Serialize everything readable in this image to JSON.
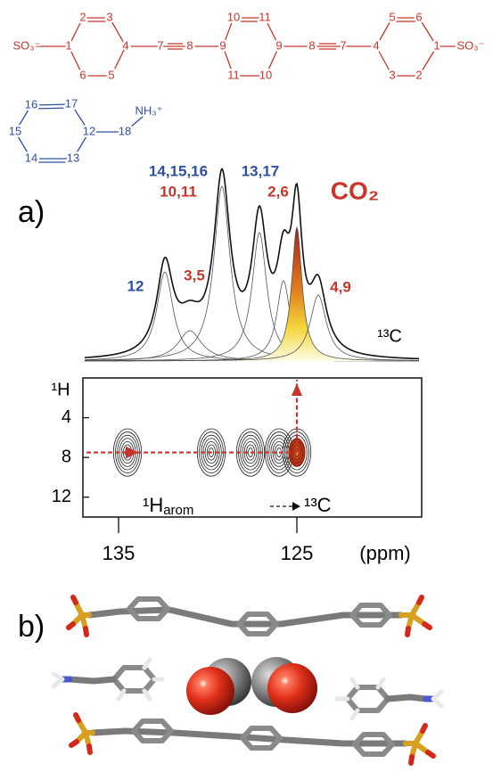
{
  "linker": {
    "color": "#c8352a",
    "labels": [
      "SO₃⁻",
      "1",
      "2",
      "3",
      "4",
      "5",
      "6",
      "7",
      "8",
      "9",
      "10",
      "11",
      "11",
      "10",
      "9",
      "8",
      "7",
      "4",
      "5",
      "6",
      "1",
      "2",
      "3",
      "SO₃⁻"
    ]
  },
  "cation": {
    "color": "#2f4fa0",
    "labels": [
      "16",
      "17",
      "12",
      "13",
      "14",
      "15",
      "18",
      "NH₃⁺"
    ]
  },
  "panel_a": {
    "label": "a)",
    "spectrum_label": "¹³C",
    "peak_labels": [
      {
        "text": "14,15,16",
        "color": "#2f4fa0"
      },
      {
        "text": "10,11",
        "color": "#c8352a"
      },
      {
        "text": "13,17",
        "color": "#2f4fa0"
      },
      {
        "text": "2,6",
        "color": "#c8352a"
      },
      {
        "text": "CO₂",
        "color": "#c8352a"
      },
      {
        "text": "12",
        "color": "#2f4fa0"
      },
      {
        "text": "3,5",
        "color": "#c8352a"
      },
      {
        "text": "4,9",
        "color": "#c8352a"
      }
    ],
    "peaks": [
      {
        "ppm": 132.4,
        "height": 50,
        "width": 0.55
      },
      {
        "ppm": 131.0,
        "height": 17,
        "width": 0.8
      },
      {
        "ppm": 129.2,
        "height": 98,
        "width": 0.55
      },
      {
        "ppm": 127.1,
        "height": 72,
        "width": 0.5
      },
      {
        "ppm": 125.75,
        "height": 45,
        "width": 0.45
      },
      {
        "ppm": 125.0,
        "height": 75,
        "width": 0.35,
        "filled": true
      },
      {
        "ppm": 123.8,
        "height": 37,
        "width": 0.55
      }
    ],
    "cross_peaks": [
      {
        "c13": 134.5,
        "h1": 7.5
      },
      {
        "c13": 129.8,
        "h1": 7.5
      },
      {
        "c13": 127.6,
        "h1": 7.5
      },
      {
        "c13": 126.0,
        "h1": 7.5
      },
      {
        "c13": 125.0,
        "h1": 7.5,
        "filled": true
      }
    ],
    "correlation": {
      "nucleus": "¹H",
      "subscript": "arom",
      "target": "¹³C"
    },
    "x_axis": {
      "label": "(ppm)",
      "lim": [
        137,
        118
      ],
      "ticks": [
        135,
        125
      ]
    },
    "y_axis": {
      "label": "¹H",
      "lim": [
        0,
        14
      ],
      "ticks": [
        4,
        8,
        12
      ]
    }
  },
  "panel_b": {
    "label": "b)"
  }
}
